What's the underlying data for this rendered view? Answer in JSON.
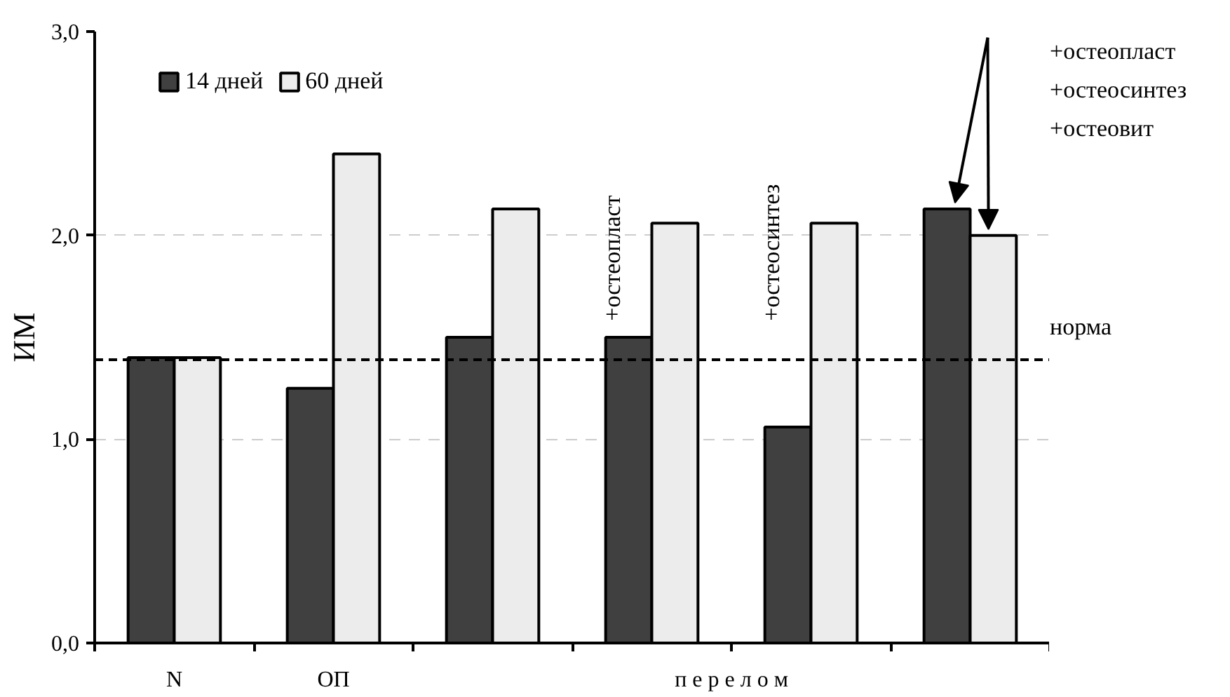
{
  "chart_data": {
    "type": "bar",
    "ylabel": "ИМ",
    "categories": [
      "N",
      "ОП",
      null,
      null,
      null,
      null
    ],
    "series": [
      {
        "name": "14 дней",
        "color": "#404040",
        "values": [
          1.4,
          1.25,
          1.5,
          1.5,
          1.06,
          2.13
        ]
      },
      {
        "name": "60 дней",
        "color": "#ececec",
        "values": [
          1.4,
          2.4,
          2.13,
          2.06,
          2.06,
          2.0
        ]
      }
    ],
    "ylim": [
      0,
      3
    ],
    "yticks": [
      {
        "value": 0,
        "label": "0,0"
      },
      {
        "value": 1,
        "label": "1,0"
      },
      {
        "value": 2,
        "label": "2,0"
      },
      {
        "value": 3,
        "label": "3,0"
      }
    ],
    "grid": "y",
    "legend": "top left",
    "ref_lines": [
      {
        "axis": "y",
        "value": 1.39,
        "label": "норма",
        "color": "#000000",
        "line_style": "dashed"
      }
    ],
    "annotations": [
      "п е р е л о м",
      "+остеопласт",
      "+остеосинтез",
      "+остеопласт\n+остеосинтез\n+остеовит"
    ]
  }
}
